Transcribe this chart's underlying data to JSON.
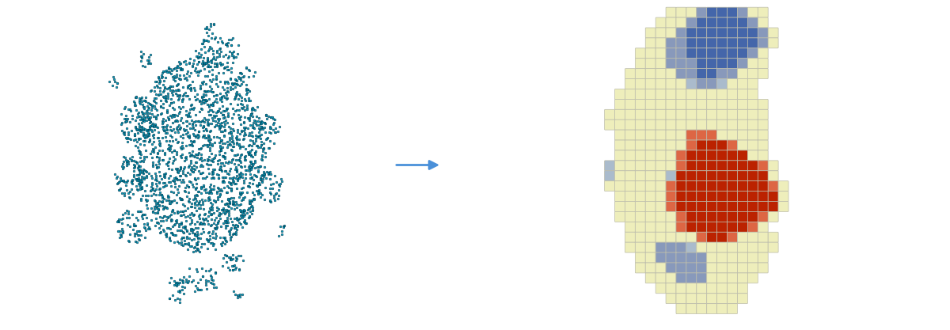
{
  "background_color": "#ffffff",
  "arrow_color": "#4a90d9",
  "left_dot_color": "#0099bb",
  "left_dot_edge_color": "#002233",
  "fig_width": 12.0,
  "fig_height": 4.17,
  "colors": {
    "hot_intense": "#bb2200",
    "hot_medium": "#dd6644",
    "cold_intense": "#4466aa",
    "cold_medium": "#8899bb",
    "cold_light": "#aabbcc",
    "neutral": "#eeeebb",
    "neutral_cool": "#b8c4cc"
  }
}
